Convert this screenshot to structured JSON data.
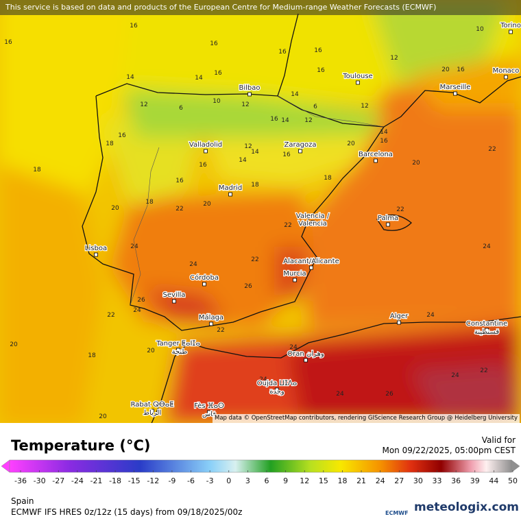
{
  "banner": "This service is based on data and products of the European Centre for Medium-range Weather Forecasts (ECMWF)",
  "attribution": "Map data © OpenStreetMap contributors, rendering GIScience Research Group @ Heidelberg University",
  "cities": [
    "Torino",
    "Monaco",
    "Marseille",
    "Toulouse",
    "Bilbao",
    "Valladolid",
    "Zaragoza",
    "Barcelona",
    "Madrid",
    "Valencia /",
    "Valencia",
    "Palma",
    "Lisboa",
    "Alacant/Alicante",
    "Murcia",
    "Córdoba",
    "Sevilla",
    "Málaga",
    "Alger",
    "Constantine",
    "قسنطينة",
    "Tanger ⵟⴰⵏⵊⴰ",
    "طنجة",
    "Oran وهران",
    "Oujda ⵡⵊⴷⴰ",
    "وجدة",
    "Rabat ⵕⴱⴰⵟ",
    "الرباط",
    "Fès ⴼⴰⵙ",
    "فاس"
  ],
  "isotherm_labels": [
    16,
    16,
    16,
    16,
    16,
    12,
    10,
    20,
    16,
    14,
    14,
    16,
    16,
    12,
    6,
    10,
    12,
    14,
    6,
    12,
    12,
    16,
    14,
    18,
    16,
    16,
    12,
    14,
    14,
    16,
    20,
    14,
    16,
    20,
    22,
    18,
    18,
    18,
    16,
    20,
    18,
    22,
    20,
    22,
    22,
    24,
    24,
    24,
    22,
    26,
    26,
    22,
    24,
    22,
    20,
    18,
    20,
    24,
    24,
    24,
    24,
    26,
    24,
    22,
    20
  ],
  "legend": {
    "title": "Temperature (°C)",
    "valid_label": "Valid for",
    "valid_time": "Mon 09/22/2025, 05:00pm CEST",
    "ticks": [
      -36,
      -30,
      -27,
      -24,
      -21,
      -18,
      -15,
      -12,
      -9,
      -6,
      -3,
      0,
      3,
      6,
      9,
      12,
      15,
      18,
      21,
      24,
      27,
      30,
      33,
      36,
      39,
      44,
      50
    ]
  },
  "footer": {
    "region": "Spain",
    "model": "ECMWF IFS HRES 0z/12z (15 days) from 09/18/2025/00z",
    "ecmwf_logo": "ECMWF",
    "site": "meteologix.com"
  }
}
